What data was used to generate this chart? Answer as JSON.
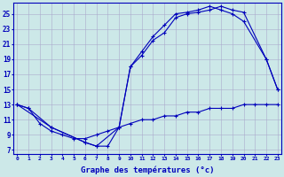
{
  "title": "Graphe des températures (°c)",
  "background_color": "#cce8e8",
  "line_color": "#0000bb",
  "grid_color": "#aaaacc",
  "y_ticks": [
    7,
    9,
    11,
    13,
    15,
    17,
    19,
    21,
    23,
    25
  ],
  "x_ticks": [
    0,
    1,
    2,
    3,
    4,
    5,
    6,
    7,
    8,
    9,
    10,
    11,
    12,
    13,
    14,
    15,
    16,
    17,
    18,
    19,
    20,
    21,
    22,
    23
  ],
  "line1_x": [
    0,
    1,
    2,
    3,
    4,
    5,
    6,
    7,
    8,
    9,
    10,
    11,
    12,
    13,
    14,
    15,
    16,
    17,
    18,
    19,
    20,
    21,
    22,
    23
  ],
  "line1_y": [
    13,
    12.5,
    10.5,
    9.5,
    9.0,
    8.5,
    8.5,
    9.0,
    9.5,
    10.0,
    10.5,
    11.0,
    11.0,
    11.5,
    11.5,
    12.0,
    12.0,
    12.5,
    12.5,
    12.5,
    13.0,
    13.0,
    13.0,
    13.0
  ],
  "line2_x": [
    0,
    1,
    3,
    6,
    7,
    8,
    9,
    10,
    11,
    12,
    13,
    14,
    15,
    16,
    17,
    18,
    19,
    20,
    22,
    23
  ],
  "line2_y": [
    13,
    12.5,
    10,
    8.0,
    7.5,
    7.5,
    10.0,
    18.0,
    19.5,
    21.5,
    22.5,
    24.5,
    25.0,
    25.2,
    25.5,
    26.0,
    25.5,
    25.2,
    19.0,
    15.0
  ],
  "line3_x": [
    0,
    3,
    6,
    7,
    9,
    10,
    11,
    12,
    13,
    14,
    15,
    16,
    17,
    18,
    19,
    20,
    22,
    23
  ],
  "line3_y": [
    13,
    10,
    8.0,
    7.5,
    10.0,
    18.0,
    20.0,
    22.0,
    23.5,
    25.0,
    25.2,
    25.5,
    26.0,
    25.5,
    25.0,
    24.0,
    19.0,
    15.0
  ]
}
